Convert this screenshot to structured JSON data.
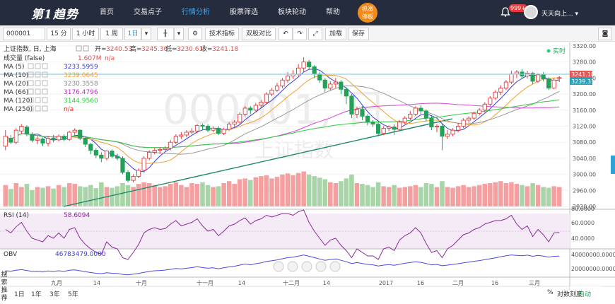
{
  "nav": {
    "logo": "第1趋势",
    "items": [
      "首页",
      "交易点子",
      "行情分析",
      "股票筛选",
      "板块轮动",
      "帮助"
    ],
    "active_index": 2,
    "promo": [
      "抓涨",
      "停板"
    ],
    "notify_count": "999+",
    "username": "天天向上..."
  },
  "toolbar": {
    "symbol": "000001",
    "periods": [
      "15 分",
      "1 小时",
      "1 周",
      "1日"
    ],
    "active_period": "1日",
    "tech_button": "技术指标",
    "compare_button": "双股对比",
    "add_button": "加载",
    "save_button": "保存"
  },
  "main_panel": {
    "title": "上证指数, 日, 上海",
    "ohlc": {
      "open_label": "开=",
      "open": "3240.53",
      "high_label": "高=",
      "high": "3245.30",
      "low_label": "低=",
      "low": "3230.61",
      "close_label": "收=",
      "close": "3241.18"
    },
    "volume_label": "成交量 (false)",
    "volume_value": "1.607M",
    "volume_na": "n/a",
    "ma": [
      {
        "name": "MA (5)",
        "value": "3233.5959",
        "color": "#3b3bd6"
      },
      {
        "name": "MA (10)",
        "value": "3239.0645",
        "color": "#f0a030"
      },
      {
        "name": "MA (20)",
        "value": "3230.3558",
        "color": "#888888"
      },
      {
        "name": "MA (66)",
        "value": "3176.4796",
        "color": "#c02cc0"
      },
      {
        "name": "MA (120)",
        "value": "3144.9560",
        "color": "#2ecc40"
      },
      {
        "name": "MA (250)",
        "value": "n/a",
        "color": "#e03030"
      }
    ],
    "realtime_label": "实时",
    "watermark_code": "000001, 日",
    "watermark_name": "上证指数",
    "price_tag_close": "3241.18",
    "price_tag_ref": "3239.31",
    "axis_ticks": [
      "3320.00",
      "3280.00",
      "3240.00",
      "3200.00",
      "3160.00",
      "3120.00",
      "3080.00",
      "3040.00",
      "3000.00",
      "2960.00",
      "2920.00"
    ]
  },
  "rsi_panel": {
    "label": "RSI (14)",
    "value": "58.6094",
    "ticks": [
      "80.0000",
      "60.0000",
      "40.0000"
    ]
  },
  "obv_panel": {
    "label": "OBV",
    "value": "46783479.0000",
    "ticks": [
      "40000000.0000",
      "20000000.0000"
    ]
  },
  "x_axis": [
    "九月",
    "14",
    "十月",
    "十一月",
    "14",
    "十二月",
    "14",
    "2017",
    "16",
    "二月",
    "16",
    "三月"
  ],
  "bottom": {
    "ranges": [
      "1日",
      "1年",
      "3年",
      "5年"
    ],
    "percent": "%",
    "log_scale": "对数刻度",
    "auto": "自动"
  },
  "left_sidebar": "搜索推荐",
  "chart_data": {
    "type": "candlestick",
    "title": "上证指数, 日, 上海",
    "ylim": [
      2920,
      3320
    ],
    "candles": [
      [
        3070,
        3095,
        3060,
        3110
      ],
      [
        3090,
        3080,
        3075,
        3098
      ],
      [
        3080,
        3110,
        3075,
        3115
      ],
      [
        3108,
        3120,
        3100,
        3125
      ],
      [
        3118,
        3100,
        3095,
        3122
      ],
      [
        3100,
        3085,
        3080,
        3105
      ],
      [
        3085,
        3088,
        3075,
        3095
      ],
      [
        3088,
        3078,
        3070,
        3092
      ],
      [
        3078,
        3090,
        3070,
        3095
      ],
      [
        3090,
        3086,
        3080,
        3098
      ],
      [
        3086,
        3095,
        3082,
        3100
      ],
      [
        3095,
        3087,
        3082,
        3100
      ],
      [
        3087,
        3105,
        3083,
        3108
      ],
      [
        3105,
        3110,
        3098,
        3115
      ],
      [
        3110,
        3090,
        3085,
        3112
      ],
      [
        3090,
        3075,
        3068,
        3095
      ],
      [
        3075,
        3060,
        3050,
        3078
      ],
      [
        3060,
        3048,
        3040,
        3065
      ],
      [
        3048,
        3040,
        3030,
        3055
      ],
      [
        3040,
        3058,
        3035,
        3060
      ],
      [
        3058,
        3045,
        3040,
        3062
      ],
      [
        3045,
        3040,
        3035,
        3052
      ],
      [
        3040,
        3005,
        3000,
        3045
      ],
      [
        3005,
        2985,
        2980,
        3010
      ],
      [
        2985,
        2995,
        2980,
        3000
      ],
      [
        2995,
        3010,
        2990,
        3015
      ],
      [
        3010,
        3040,
        3005,
        3045
      ],
      [
        3040,
        3055,
        3035,
        3060
      ],
      [
        3055,
        3060,
        3050,
        3065
      ],
      [
        3060,
        3062,
        3052,
        3068
      ],
      [
        3062,
        3065,
        3058,
        3070
      ],
      [
        3065,
        3080,
        3060,
        3085
      ],
      [
        3080,
        3095,
        3075,
        3100
      ],
      [
        3095,
        3098,
        3088,
        3105
      ],
      [
        3098,
        3105,
        3092,
        3110
      ],
      [
        3105,
        3108,
        3100,
        3115
      ],
      [
        3108,
        3122,
        3102,
        3125
      ],
      [
        3122,
        3120,
        3110,
        3126
      ],
      [
        3120,
        3110,
        3105,
        3125
      ],
      [
        3110,
        3115,
        3105,
        3120
      ],
      [
        3115,
        3102,
        3098,
        3120
      ],
      [
        3102,
        3112,
        3098,
        3116
      ],
      [
        3112,
        3125,
        3108,
        3130
      ],
      [
        3125,
        3130,
        3118,
        3135
      ],
      [
        3130,
        3150,
        3125,
        3155
      ],
      [
        3150,
        3165,
        3145,
        3170
      ],
      [
        3165,
        3160,
        3150,
        3170
      ],
      [
        3160,
        3172,
        3155,
        3178
      ],
      [
        3172,
        3180,
        3165,
        3185
      ],
      [
        3180,
        3200,
        3175,
        3205
      ],
      [
        3200,
        3210,
        3195,
        3215
      ],
      [
        3210,
        3220,
        3205,
        3228
      ],
      [
        3220,
        3235,
        3215,
        3240
      ],
      [
        3235,
        3245,
        3228,
        3255
      ],
      [
        3245,
        3250,
        3238,
        3260
      ],
      [
        3250,
        3265,
        3245,
        3275
      ],
      [
        3265,
        3280,
        3255,
        3292
      ],
      [
        3280,
        3268,
        3260,
        3285
      ],
      [
        3268,
        3250,
        3240,
        3272
      ],
      [
        3250,
        3235,
        3228,
        3255
      ],
      [
        3235,
        3215,
        3205,
        3240
      ],
      [
        3215,
        3225,
        3210,
        3232
      ],
      [
        3225,
        3230,
        3215,
        3240
      ],
      [
        3230,
        3212,
        3200,
        3235
      ],
      [
        3212,
        3195,
        3175,
        3215
      ],
      [
        3195,
        3150,
        3140,
        3200
      ],
      [
        3150,
        3162,
        3140,
        3168
      ],
      [
        3162,
        3145,
        3135,
        3170
      ],
      [
        3145,
        3130,
        3122,
        3150
      ],
      [
        3130,
        3125,
        3118,
        3135
      ],
      [
        3125,
        3102,
        3095,
        3130
      ],
      [
        3102,
        3115,
        3098,
        3120
      ],
      [
        3115,
        3118,
        3108,
        3122
      ],
      [
        3118,
        3112,
        3098,
        3125
      ],
      [
        3112,
        3130,
        3108,
        3135
      ],
      [
        3130,
        3140,
        3125,
        3145
      ],
      [
        3140,
        3150,
        3135,
        3158
      ],
      [
        3150,
        3165,
        3145,
        3170
      ],
      [
        3165,
        3158,
        3150,
        3172
      ],
      [
        3158,
        3140,
        3132,
        3162
      ],
      [
        3140,
        3118,
        3110,
        3145
      ],
      [
        3118,
        3120,
        3105,
        3125
      ],
      [
        3120,
        3095,
        3060,
        3125
      ],
      [
        3095,
        3100,
        3088,
        3110
      ],
      [
        3100,
        3110,
        3095,
        3115
      ],
      [
        3110,
        3120,
        3105,
        3128
      ],
      [
        3120,
        3135,
        3115,
        3140
      ],
      [
        3135,
        3140,
        3128,
        3145
      ],
      [
        3140,
        3152,
        3135,
        3156
      ],
      [
        3152,
        3160,
        3148,
        3165
      ],
      [
        3160,
        3175,
        3155,
        3180
      ],
      [
        3175,
        3190,
        3170,
        3195
      ],
      [
        3190,
        3205,
        3185,
        3210
      ],
      [
        3205,
        3215,
        3198,
        3222
      ],
      [
        3215,
        3230,
        3210,
        3235
      ],
      [
        3230,
        3250,
        3225,
        3258
      ],
      [
        3250,
        3255,
        3240,
        3260
      ],
      [
        3255,
        3245,
        3238,
        3262
      ],
      [
        3245,
        3252,
        3240,
        3258
      ],
      [
        3252,
        3232,
        3225,
        3255
      ],
      [
        3232,
        3248,
        3228,
        3252
      ],
      [
        3248,
        3238,
        3232,
        3255
      ],
      [
        3238,
        3215,
        3210,
        3242
      ],
      [
        3215,
        3235,
        3212,
        3240
      ],
      [
        3240,
        3241,
        3230,
        3245
      ]
    ],
    "volumes": [
      0.55,
      0.45,
      0.6,
      0.5,
      0.58,
      0.42,
      0.5,
      0.48,
      0.52,
      0.46,
      0.55,
      0.5,
      0.6,
      0.58,
      0.52,
      0.5,
      0.55,
      0.47,
      0.62,
      0.5,
      0.48,
      0.52,
      0.6,
      0.55,
      0.5,
      0.58,
      0.62,
      0.6,
      0.55,
      0.5,
      0.52,
      0.58,
      0.62,
      0.55,
      0.5,
      0.6,
      0.58,
      0.62,
      0.55,
      0.5,
      0.52,
      0.6,
      0.65,
      0.58,
      0.7,
      0.72,
      0.68,
      0.75,
      0.78,
      0.8,
      0.72,
      0.76,
      0.82,
      0.85,
      0.8,
      0.86,
      0.9,
      0.82,
      0.78,
      0.74,
      0.7,
      0.62,
      0.6,
      0.65,
      0.72,
      0.82,
      0.6,
      0.58,
      0.55,
      0.5,
      0.62,
      0.52,
      0.5,
      0.55,
      0.48,
      0.5,
      0.52,
      0.55,
      0.5,
      0.6,
      0.58,
      0.5,
      0.65,
      0.5,
      0.48,
      0.52,
      0.55,
      0.5,
      0.52,
      0.55,
      0.58,
      0.6,
      0.62,
      0.65,
      0.6,
      0.62,
      0.58,
      0.55,
      0.52,
      0.6,
      0.55,
      0.5,
      0.48,
      0.52,
      0.5
    ],
    "rsi": [
      62,
      58,
      65,
      70,
      60,
      52,
      50,
      48,
      55,
      52,
      58,
      52,
      62,
      64,
      52,
      45,
      40,
      36,
      34,
      48,
      42,
      40,
      30,
      28,
      36,
      45,
      58,
      62,
      64,
      62,
      63,
      68,
      72,
      66,
      68,
      70,
      74,
      66,
      60,
      62,
      55,
      60,
      66,
      68,
      72,
      75,
      68,
      72,
      74,
      78,
      76,
      78,
      80,
      80,
      78,
      82,
      84,
      70,
      60,
      52,
      44,
      50,
      52,
      44,
      38,
      30,
      40,
      36,
      32,
      32,
      28,
      40,
      42,
      38,
      50,
      55,
      58,
      64,
      58,
      46,
      36,
      38,
      30,
      40,
      44,
      50,
      56,
      58,
      62,
      64,
      68,
      70,
      72,
      72,
      74,
      78,
      68,
      62,
      66,
      54,
      62,
      56,
      48,
      58,
      58.6
    ],
    "obv": [
      0.22,
      0.2,
      0.24,
      0.27,
      0.23,
      0.19,
      0.2,
      0.18,
      0.21,
      0.19,
      0.22,
      0.19,
      0.24,
      0.26,
      0.22,
      0.18,
      0.14,
      0.11,
      0.09,
      0.13,
      0.11,
      0.1,
      0.06,
      0.04,
      0.07,
      0.1,
      0.15,
      0.19,
      0.22,
      0.23,
      0.25,
      0.28,
      0.32,
      0.3,
      0.33,
      0.36,
      0.4,
      0.36,
      0.33,
      0.35,
      0.31,
      0.35,
      0.39,
      0.42,
      0.47,
      0.52,
      0.48,
      0.53,
      0.57,
      0.63,
      0.66,
      0.7,
      0.75,
      0.8,
      0.82,
      0.87,
      0.92,
      0.86,
      0.8,
      0.74,
      0.68,
      0.72,
      0.74,
      0.68,
      0.62,
      0.54,
      0.58,
      0.54,
      0.5,
      0.48,
      0.43,
      0.47,
      0.49,
      0.46,
      0.51,
      0.55,
      0.58,
      0.62,
      0.59,
      0.54,
      0.48,
      0.5,
      0.44,
      0.47,
      0.5,
      0.53,
      0.57,
      0.6,
      0.64,
      0.67,
      0.71,
      0.75,
      0.79,
      0.84,
      0.88,
      0.92,
      0.9,
      0.88,
      0.91,
      0.86,
      0.9,
      0.87,
      0.82,
      0.86,
      0.87
    ]
  }
}
